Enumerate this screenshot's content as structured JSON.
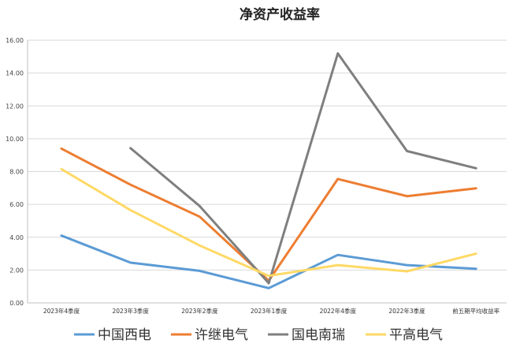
{
  "chart_data": {
    "type": "line",
    "title": "净资产收益率",
    "xlabel": "",
    "ylabel": "",
    "ylim": [
      0,
      16
    ],
    "ytick_step": 2,
    "ytick_labels": [
      "0.00",
      "2.00",
      "4.00",
      "6.00",
      "8.00",
      "10.00",
      "12.00",
      "14.00",
      "16.00"
    ],
    "grid": true,
    "legend_position": "bottom",
    "categories": [
      "2023年4季度",
      "2023年3季度",
      "2023年2季度",
      "2023年1季度",
      "2022年4季度",
      "2022年3季度",
      "前五期平均收益率"
    ],
    "series": [
      {
        "name": "中国西电",
        "color": "#5B9BD5",
        "values": [
          4.1,
          2.45,
          1.95,
          0.9,
          2.92,
          2.3,
          2.08
        ]
      },
      {
        "name": "许继电气",
        "color": "#ED7D31",
        "values": [
          9.4,
          7.2,
          5.25,
          1.35,
          7.55,
          6.5,
          6.98
        ]
      },
      {
        "name": "国电南瑞",
        "color": "#7F7F7F",
        "values": [
          null,
          9.42,
          5.9,
          1.2,
          15.2,
          9.25,
          8.2
        ]
      },
      {
        "name": "平高电气",
        "color": "#FFD966",
        "values": [
          8.15,
          5.65,
          3.5,
          1.65,
          2.3,
          1.92,
          3.0
        ]
      }
    ]
  }
}
